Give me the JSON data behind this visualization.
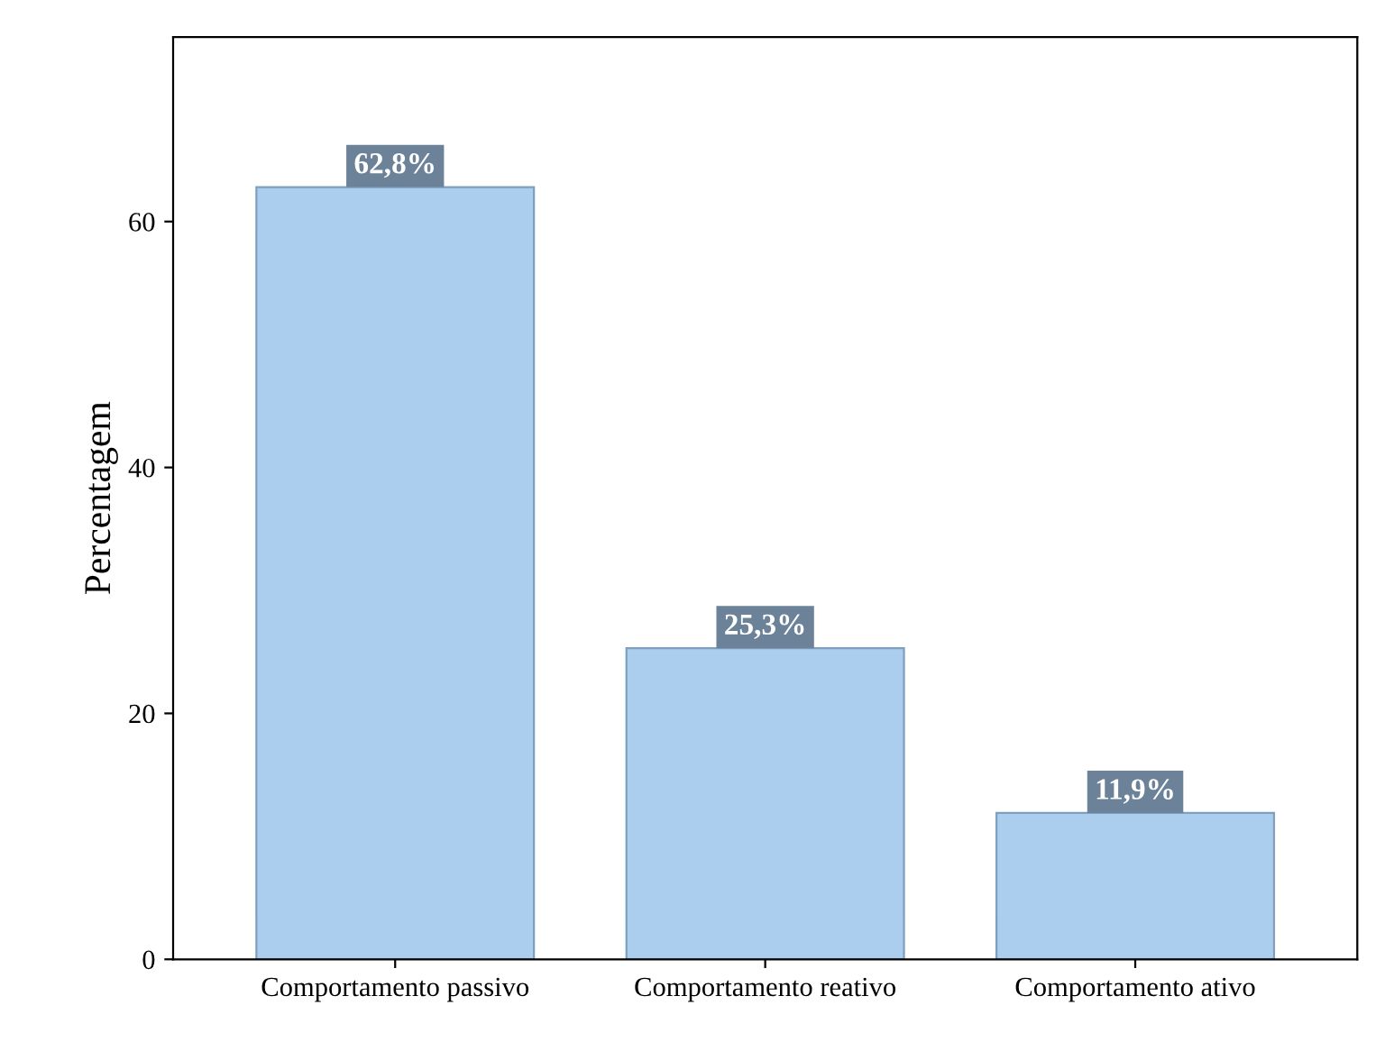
{
  "chart_data": {
    "type": "bar",
    "ylabel": "Percentagem",
    "categories": [
      "Comportamento passivo",
      "Comportamento reativo",
      "Comportamento ativo"
    ],
    "values": [
      62.8,
      25.3,
      11.9
    ],
    "value_labels": [
      "62,8%",
      "25,3%",
      "11,9%"
    ],
    "color": "#abcdee",
    "ylim": [
      0,
      75
    ],
    "yticks": [
      0,
      20,
      40,
      60
    ],
    "grid": false,
    "legend": false
  }
}
